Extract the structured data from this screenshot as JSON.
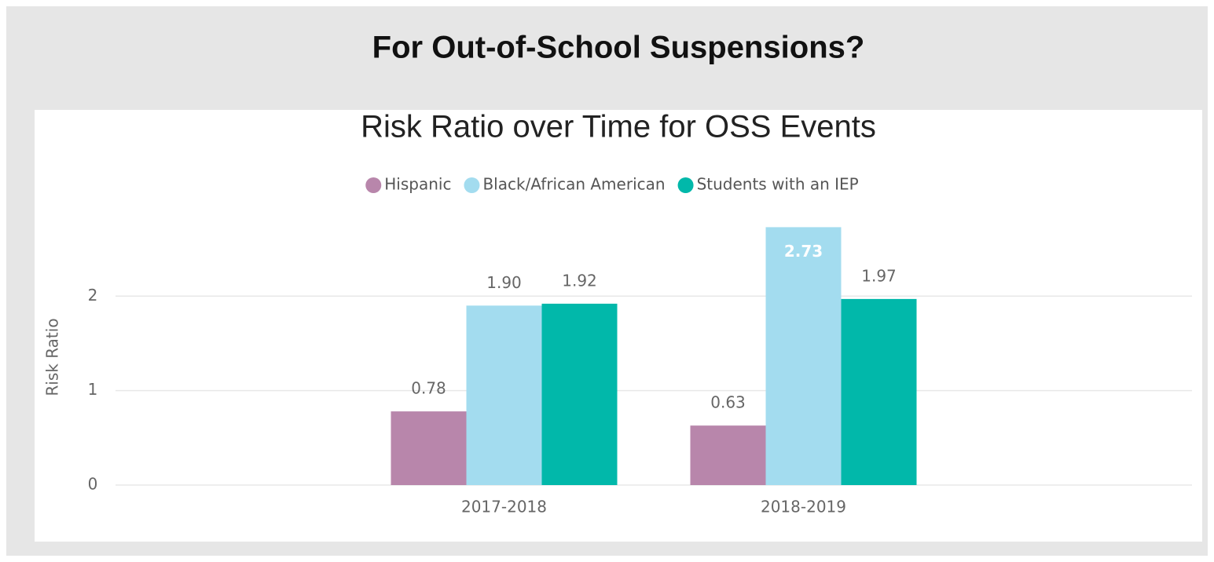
{
  "header": {
    "title": "For Out-of-School Suspensions?"
  },
  "chart_data": {
    "type": "bar",
    "title": "Risk Ratio over Time for OSS Events",
    "y_label": "Risk Ratio",
    "categories": [
      "2017-2018",
      "2018-2019"
    ],
    "series": [
      {
        "name": "Hispanic",
        "color": "#b886ab",
        "values": [
          0.78,
          0.63
        ],
        "value_labels": [
          "0.78",
          "0.63"
        ]
      },
      {
        "name": "Black/African American",
        "color": "#a3dcef",
        "values": [
          1.9,
          2.73
        ],
        "value_labels": [
          "1.90",
          "2.73"
        ]
      },
      {
        "name": "Students with an IEP",
        "color": "#01b8aa",
        "values": [
          1.92,
          1.97
        ],
        "value_labels": [
          "1.92",
          "1.97"
        ]
      }
    ],
    "ylim": [
      0,
      2.8
    ],
    "yticks": [
      0,
      1,
      2
    ],
    "grid": true,
    "legend": "top"
  }
}
